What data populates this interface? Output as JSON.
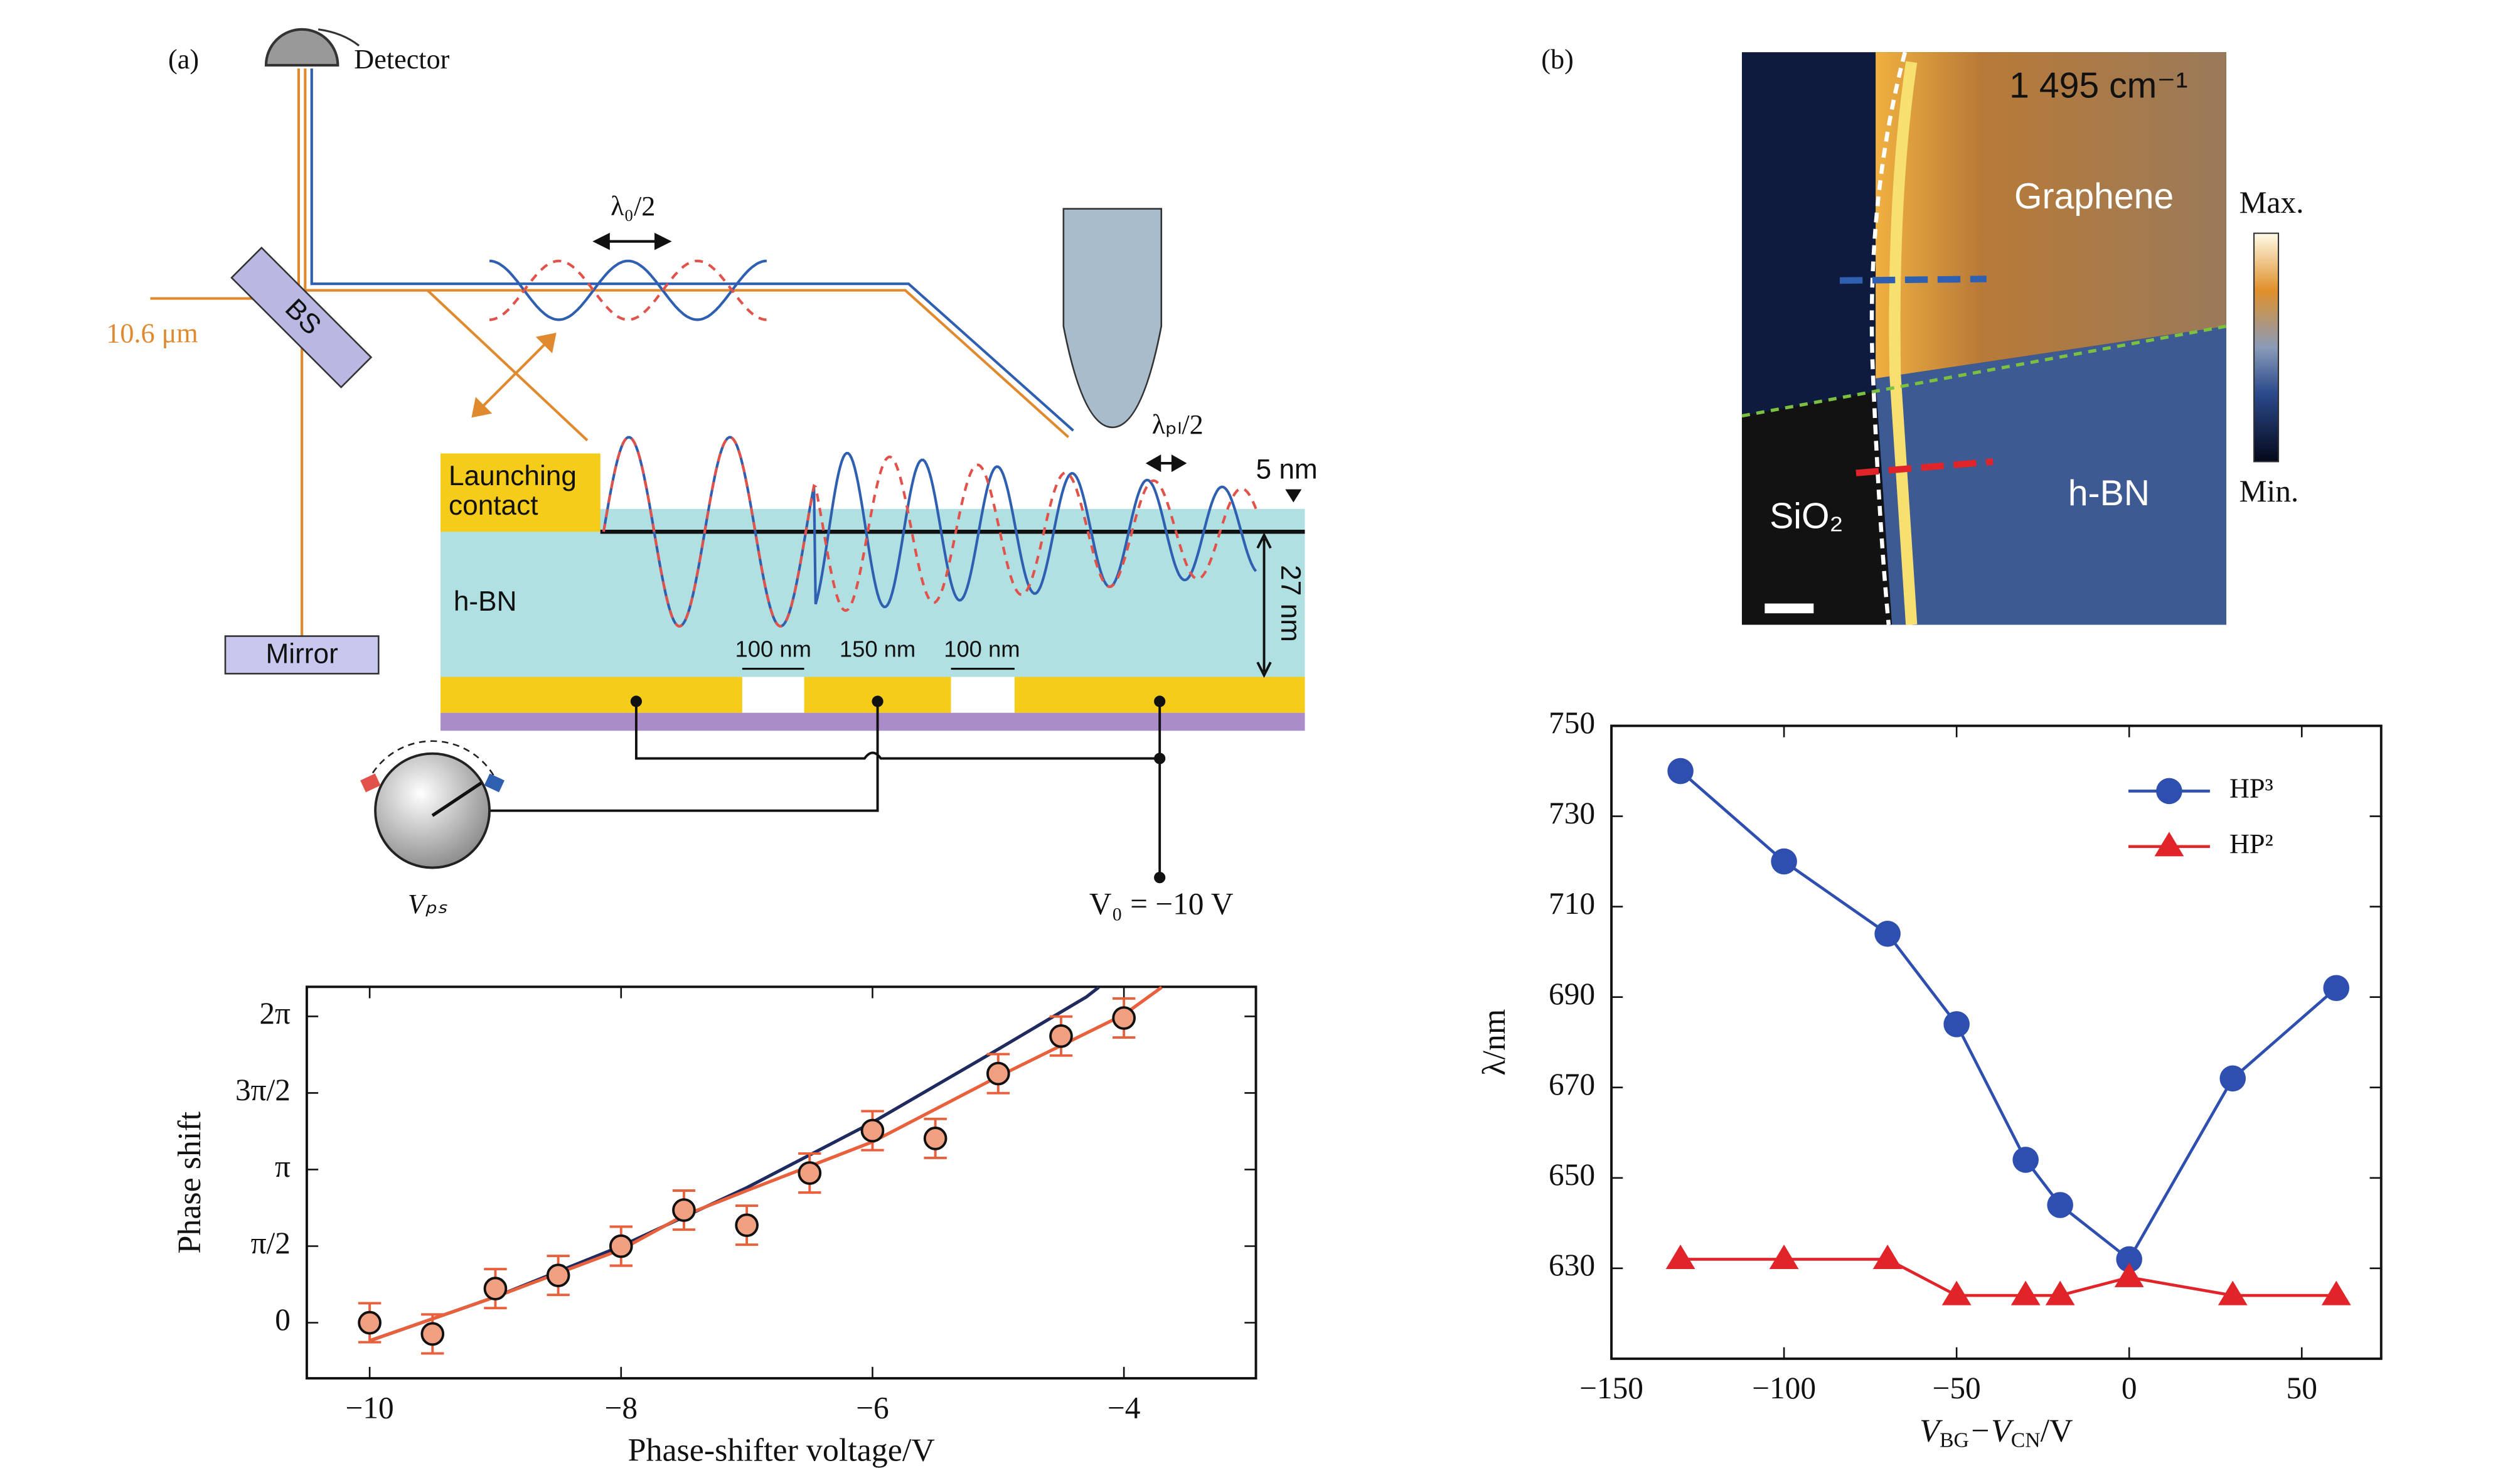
{
  "panel_labels": [
    "(a)",
    "(b)"
  ],
  "diagram": {
    "detector": "Detector",
    "beam_splitter": "BS",
    "wavelength": "10.6 μm",
    "mirror": "Mirror",
    "lambda0": "λ₀/2",
    "lambda_pl": "λₚₗ/2",
    "contact": [
      "Launching",
      "contact"
    ],
    "hbn": "h-BN",
    "top_thickness": "5 nm",
    "thickness": "27 nm",
    "gaps": [
      "100 nm",
      "150 nm",
      "100 nm"
    ],
    "vps": "Vₚₛ",
    "v0": "V₀ = −10 V"
  },
  "image_labels": {
    "frequency": "1 495 cm⁻¹",
    "graphene": "Graphene",
    "sio2": "SiO₂",
    "hbn": "h-BN",
    "max": "Max.",
    "min": "Min."
  },
  "chart_data": [
    {
      "type": "scatter",
      "x_label": "Phase-shifter voltage/V",
      "y_label": "Phase shift",
      "xlim": [
        -10.5,
        -2.95
      ],
      "ylim": [
        -1.14,
        6.89
      ],
      "xticks": [
        {
          "value": -10,
          "label": "−10"
        },
        {
          "value": -8,
          "label": "−8"
        },
        {
          "value": -6,
          "label": "−6"
        },
        {
          "value": -4,
          "label": "−4"
        }
      ],
      "yticks": [
        0,
        {
          "value": 1.5708,
          "label": "π/2"
        },
        {
          "value": 3.1416,
          "label": "π"
        },
        {
          "value": 4.7124,
          "label": "3π/2"
        },
        {
          "value": 6.2832,
          "label": "2π"
        }
      ],
      "series": [
        {
          "style": "line",
          "color": "#1f2a5e",
          "x": [
            -10,
            -9,
            -8,
            -7,
            -6,
            -5,
            -4.3,
            -4.2
          ],
          "values": [
            -0.37,
            0.53,
            1.57,
            2.77,
            4.11,
            5.61,
            6.68,
            6.88
          ]
        },
        {
          "style": "line",
          "color": "#e8603c",
          "x": [
            -10,
            -9,
            -8,
            -7.5,
            -7,
            -6,
            -5,
            -4,
            -3.7
          ],
          "values": [
            -0.37,
            0.53,
            1.5,
            2.2,
            2.71,
            3.71,
            5.05,
            6.32,
            6.88
          ]
        },
        {
          "style": "points",
          "color": "#f0a080",
          "error_color": "#e8603c",
          "x": [
            -10,
            -9.5,
            -9,
            -8.5,
            -8,
            -7.5,
            -7,
            -6.5,
            -6,
            -5.5,
            -5,
            -4.5,
            -4
          ],
          "values": [
            0,
            -0.23,
            0.7,
            0.97,
            1.57,
            2.31,
            2.0,
            3.07,
            3.94,
            3.78,
            5.11,
            5.88,
            6.25
          ],
          "errors": [
            0.4,
            0.4,
            0.4,
            0.4,
            0.4,
            0.4,
            0.4,
            0.4,
            0.4,
            0.4,
            0.4,
            0.4,
            0.4
          ]
        }
      ]
    },
    {
      "type": "line",
      "x_label": [
        "V",
        "BG",
        "−V",
        "CN",
        "/V"
      ],
      "y_label": "λ/nm",
      "xlim": [
        -150,
        73
      ],
      "ylim": [
        610,
        750
      ],
      "xticks": [
        {
          "value": -150,
          "label": "−150"
        },
        {
          "value": -100,
          "label": "−100"
        },
        {
          "value": -50,
          "label": "−50"
        },
        0,
        50
      ],
      "yticks": [
        630,
        650,
        670,
        690,
        710,
        730,
        750
      ],
      "legend": "upper right",
      "series": [
        {
          "name": "HP³",
          "color": "#2f4fb0",
          "marker": "circle",
          "x": [
            -130,
            -100,
            -70,
            -50,
            -30,
            -20,
            0,
            30,
            60
          ],
          "values": [
            740,
            720,
            704,
            684,
            654,
            644,
            632,
            672,
            692
          ]
        },
        {
          "name": "HP²",
          "color": "#e0242a",
          "marker": "triangle",
          "x": [
            -130,
            -100,
            -70,
            -50,
            -30,
            -20,
            0,
            30,
            60
          ],
          "values": [
            632,
            632,
            632,
            624,
            624,
            624,
            628,
            624,
            624
          ]
        }
      ]
    }
  ]
}
